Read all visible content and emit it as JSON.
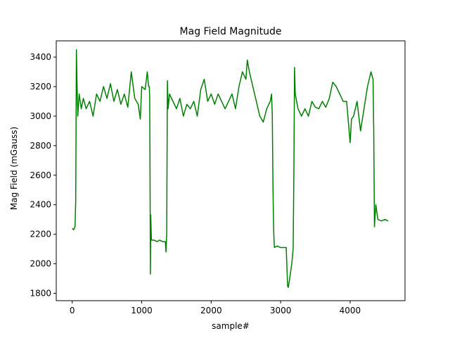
{
  "chart_data": {
    "type": "line",
    "title": "Mag Field Magnitude",
    "xlabel": "sample#",
    "ylabel": "Mag Field (mGauss)",
    "xlim": [
      -230,
      4790
    ],
    "ylim": [
      1750,
      3510
    ],
    "xticks": [
      0,
      1000,
      2000,
      3000,
      4000
    ],
    "yticks": [
      1800,
      2000,
      2200,
      2400,
      2600,
      2800,
      3000,
      3200,
      3400
    ],
    "grid": false,
    "series": [
      {
        "color": "#008000",
        "points": [
          [
            0,
            2240
          ],
          [
            20,
            2230
          ],
          [
            40,
            2250
          ],
          [
            50,
            2420
          ],
          [
            55,
            2900
          ],
          [
            60,
            3450
          ],
          [
            70,
            3200
          ],
          [
            80,
            3000
          ],
          [
            100,
            3150
          ],
          [
            130,
            3050
          ],
          [
            160,
            3120
          ],
          [
            200,
            3050
          ],
          [
            250,
            3100
          ],
          [
            300,
            3000
          ],
          [
            350,
            3150
          ],
          [
            400,
            3100
          ],
          [
            450,
            3200
          ],
          [
            500,
            3120
          ],
          [
            550,
            3220
          ],
          [
            600,
            3100
          ],
          [
            650,
            3180
          ],
          [
            700,
            3080
          ],
          [
            750,
            3150
          ],
          [
            800,
            3060
          ],
          [
            850,
            3300
          ],
          [
            900,
            3120
          ],
          [
            950,
            3080
          ],
          [
            980,
            2980
          ],
          [
            1000,
            3200
          ],
          [
            1050,
            3180
          ],
          [
            1080,
            3300
          ],
          [
            1100,
            3200
          ],
          [
            1110,
            3200
          ],
          [
            1115,
            3120
          ],
          [
            1120,
            2600
          ],
          [
            1125,
            1930
          ],
          [
            1130,
            2330
          ],
          [
            1140,
            2160
          ],
          [
            1180,
            2160
          ],
          [
            1220,
            2150
          ],
          [
            1260,
            2160
          ],
          [
            1300,
            2150
          ],
          [
            1340,
            2150
          ],
          [
            1350,
            2080
          ],
          [
            1360,
            2200
          ],
          [
            1370,
            3240
          ],
          [
            1380,
            3050
          ],
          [
            1400,
            3150
          ],
          [
            1450,
            3100
          ],
          [
            1500,
            3050
          ],
          [
            1550,
            3120
          ],
          [
            1600,
            3000
          ],
          [
            1650,
            3080
          ],
          [
            1700,
            3050
          ],
          [
            1750,
            3100
          ],
          [
            1800,
            3000
          ],
          [
            1850,
            3180
          ],
          [
            1900,
            3250
          ],
          [
            1950,
            3100
          ],
          [
            2000,
            3150
          ],
          [
            2050,
            3080
          ],
          [
            2100,
            3150
          ],
          [
            2150,
            3100
          ],
          [
            2200,
            3050
          ],
          [
            2250,
            3100
          ],
          [
            2300,
            3150
          ],
          [
            2350,
            3050
          ],
          [
            2400,
            3200
          ],
          [
            2450,
            3300
          ],
          [
            2500,
            3250
          ],
          [
            2520,
            3380
          ],
          [
            2550,
            3300
          ],
          [
            2600,
            3200
          ],
          [
            2650,
            3100
          ],
          [
            2700,
            3000
          ],
          [
            2750,
            2960
          ],
          [
            2800,
            3050
          ],
          [
            2850,
            3100
          ],
          [
            2870,
            3150
          ],
          [
            2880,
            3000
          ],
          [
            2890,
            2500
          ],
          [
            2900,
            2220
          ],
          [
            2910,
            2110
          ],
          [
            2950,
            2120
          ],
          [
            3000,
            2110
          ],
          [
            3050,
            2110
          ],
          [
            3080,
            2110
          ],
          [
            3100,
            1850
          ],
          [
            3110,
            1840
          ],
          [
            3130,
            1900
          ],
          [
            3160,
            2000
          ],
          [
            3180,
            2100
          ],
          [
            3190,
            2600
          ],
          [
            3200,
            3330
          ],
          [
            3210,
            3150
          ],
          [
            3250,
            3050
          ],
          [
            3300,
            3000
          ],
          [
            3350,
            3050
          ],
          [
            3400,
            3000
          ],
          [
            3450,
            3100
          ],
          [
            3500,
            3060
          ],
          [
            3550,
            3050
          ],
          [
            3600,
            3100
          ],
          [
            3650,
            3060
          ],
          [
            3700,
            3120
          ],
          [
            3750,
            3230
          ],
          [
            3800,
            3200
          ],
          [
            3850,
            3150
          ],
          [
            3900,
            3100
          ],
          [
            3950,
            3100
          ],
          [
            4000,
            2820
          ],
          [
            4020,
            2980
          ],
          [
            4050,
            3000
          ],
          [
            4100,
            3100
          ],
          [
            4150,
            2900
          ],
          [
            4200,
            3050
          ],
          [
            4250,
            3200
          ],
          [
            4300,
            3300
          ],
          [
            4330,
            3250
          ],
          [
            4340,
            2900
          ],
          [
            4350,
            2250
          ],
          [
            4370,
            2400
          ],
          [
            4400,
            2300
          ],
          [
            4450,
            2290
          ],
          [
            4500,
            2300
          ],
          [
            4550,
            2290
          ]
        ]
      }
    ]
  }
}
